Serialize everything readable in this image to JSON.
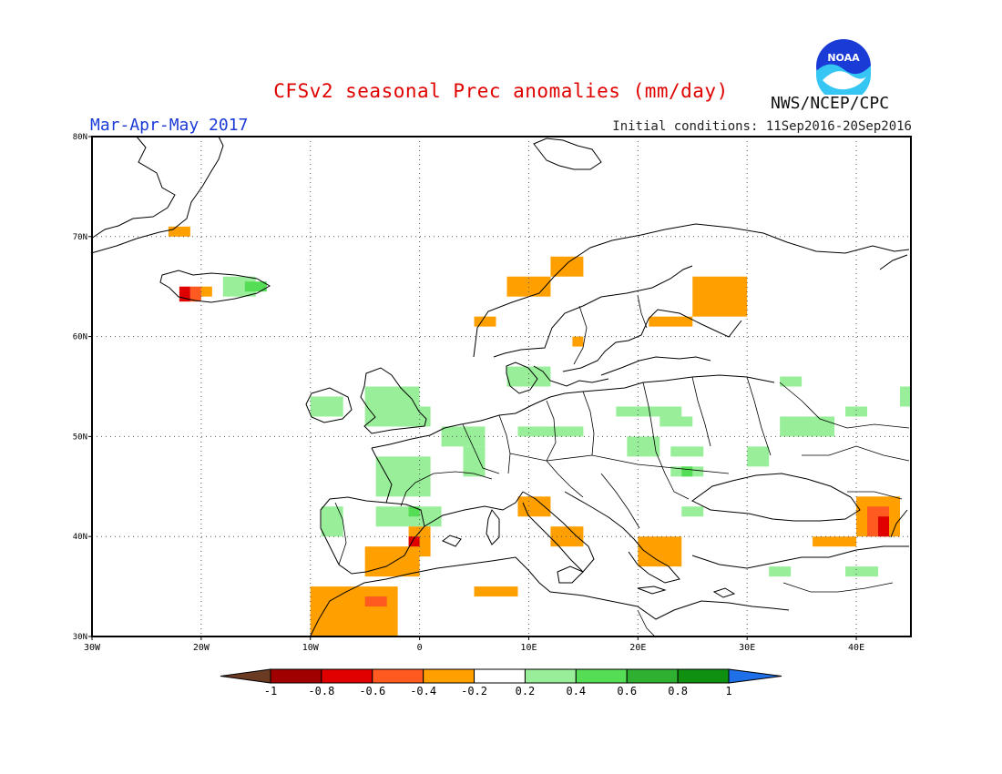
{
  "title": "CFSv2 seasonal Prec anomalies (mm/day)",
  "season": "Mar-Apr-May 2017",
  "initial_conditions": "Initial conditions: 11Sep2016-20Sep2016",
  "agency": "NWS/NCEP/CPC",
  "logo_text": "NOAA",
  "icons": {
    "logo": "noaa-logo"
  },
  "map": {
    "lon_range": [
      -30,
      45
    ],
    "lat_range": [
      30,
      80
    ],
    "lon_ticks": [
      {
        "value": -30,
        "label": "30W"
      },
      {
        "value": -20,
        "label": "20W"
      },
      {
        "value": -10,
        "label": "10W"
      },
      {
        "value": 0,
        "label": "0"
      },
      {
        "value": 10,
        "label": "10E"
      },
      {
        "value": 20,
        "label": "20E"
      },
      {
        "value": 30,
        "label": "30E"
      },
      {
        "value": 40,
        "label": "40E"
      }
    ],
    "lat_ticks": [
      {
        "value": 30,
        "label": "30N"
      },
      {
        "value": 40,
        "label": "40N"
      },
      {
        "value": 50,
        "label": "50N"
      },
      {
        "value": 60,
        "label": "60N"
      },
      {
        "value": 70,
        "label": "70N"
      },
      {
        "value": 80,
        "label": "80N"
      }
    ],
    "gridlines": "dotted"
  },
  "legend": {
    "ticks": [
      "-1",
      "-0.8",
      "-0.6",
      "-0.4",
      "-0.2",
      "0.2",
      "0.4",
      "0.6",
      "0.8",
      "1"
    ],
    "colors": [
      "#6b3a23",
      "#a00000",
      "#e00000",
      "#ff5a1f",
      "#ff9f00",
      "#ffffff",
      "#99ee99",
      "#55dd55",
      "#30b030",
      "#109010",
      "#1e6fe8"
    ]
  },
  "anomaly_colors": {
    "-0.2": "#ff9f00",
    "-0.4": "#ff5a1f",
    "-0.6": "#e00000",
    "0.2": "#99ee99",
    "0.4": "#55dd55"
  },
  "anomalies": [
    {
      "lon": [
        -23,
        -21
      ],
      "lat": [
        70,
        71
      ],
      "value": -0.2
    },
    {
      "lon": [
        -22,
        -21
      ],
      "lat": [
        63.5,
        65
      ],
      "value": -0.6
    },
    {
      "lon": [
        -21,
        -20
      ],
      "lat": [
        63.5,
        65
      ],
      "value": -0.4
    },
    {
      "lon": [
        -20,
        -19
      ],
      "lat": [
        64,
        65
      ],
      "value": -0.2
    },
    {
      "lon": [
        -18,
        -15
      ],
      "lat": [
        64,
        66
      ],
      "value": 0.2
    },
    {
      "lon": [
        -16,
        -14
      ],
      "lat": [
        64.5,
        65.5
      ],
      "value": 0.4
    },
    {
      "lon": [
        12,
        15
      ],
      "lat": [
        66,
        68
      ],
      "value": -0.2
    },
    {
      "lon": [
        8,
        12
      ],
      "lat": [
        64,
        66
      ],
      "value": -0.2
    },
    {
      "lon": [
        5,
        7
      ],
      "lat": [
        61,
        62
      ],
      "value": -0.2
    },
    {
      "lon": [
        25,
        30
      ],
      "lat": [
        62,
        66
      ],
      "value": -0.2
    },
    {
      "lon": [
        21,
        25
      ],
      "lat": [
        61,
        62
      ],
      "value": -0.2
    },
    {
      "lon": [
        14,
        15
      ],
      "lat": [
        59,
        60
      ],
      "value": -0.2
    },
    {
      "lon": [
        -10,
        -7
      ],
      "lat": [
        52,
        54
      ],
      "value": 0.2
    },
    {
      "lon": [
        -5,
        0
      ],
      "lat": [
        51,
        55
      ],
      "value": 0.2
    },
    {
      "lon": [
        -2,
        1
      ],
      "lat": [
        51,
        53
      ],
      "value": 0.2
    },
    {
      "lon": [
        8,
        12
      ],
      "lat": [
        55,
        57
      ],
      "value": 0.2
    },
    {
      "lon": [
        2,
        6
      ],
      "lat": [
        49,
        51
      ],
      "value": 0.2
    },
    {
      "lon": [
        9,
        15
      ],
      "lat": [
        50,
        51
      ],
      "value": 0.2
    },
    {
      "lon": [
        18,
        24
      ],
      "lat": [
        52,
        53
      ],
      "value": 0.2
    },
    {
      "lon": [
        22,
        25
      ],
      "lat": [
        51,
        52
      ],
      "value": 0.2
    },
    {
      "lon": [
        19,
        22
      ],
      "lat": [
        48,
        50
      ],
      "value": 0.2
    },
    {
      "lon": [
        23,
        26
      ],
      "lat": [
        48,
        49
      ],
      "value": 0.2
    },
    {
      "lon": [
        23,
        26
      ],
      "lat": [
        46,
        47
      ],
      "value": 0.2
    },
    {
      "lon": [
        24,
        25
      ],
      "lat": [
        46,
        47
      ],
      "value": 0.4
    },
    {
      "lon": [
        30,
        32
      ],
      "lat": [
        47,
        49
      ],
      "value": 0.2
    },
    {
      "lon": [
        33,
        38
      ],
      "lat": [
        50,
        52
      ],
      "value": 0.2
    },
    {
      "lon": [
        39,
        41
      ],
      "lat": [
        52,
        53
      ],
      "value": 0.2
    },
    {
      "lon": [
        33,
        35
      ],
      "lat": [
        55,
        56
      ],
      "value": 0.2
    },
    {
      "lon": [
        44,
        45
      ],
      "lat": [
        53,
        55
      ],
      "value": 0.2
    },
    {
      "lon": [
        -4,
        1
      ],
      "lat": [
        44,
        48
      ],
      "value": 0.2
    },
    {
      "lon": [
        4,
        6
      ],
      "lat": [
        46,
        49
      ],
      "value": 0.2
    },
    {
      "lon": [
        -9,
        -7
      ],
      "lat": [
        40,
        43
      ],
      "value": 0.2
    },
    {
      "lon": [
        -4,
        2
      ],
      "lat": [
        41,
        43
      ],
      "value": 0.2
    },
    {
      "lon": [
        -1,
        0
      ],
      "lat": [
        42,
        43
      ],
      "value": 0.4
    },
    {
      "lon": [
        24,
        26
      ],
      "lat": [
        42,
        43
      ],
      "value": 0.2
    },
    {
      "lon": [
        32,
        34
      ],
      "lat": [
        36,
        37
      ],
      "value": 0.2
    },
    {
      "lon": [
        39,
        42
      ],
      "lat": [
        36,
        37
      ],
      "value": 0.2
    },
    {
      "lon": [
        9,
        12
      ],
      "lat": [
        42,
        44
      ],
      "value": -0.2
    },
    {
      "lon": [
        12,
        15
      ],
      "lat": [
        39,
        41
      ],
      "value": -0.2
    },
    {
      "lon": [
        20,
        24
      ],
      "lat": [
        37,
        40
      ],
      "value": -0.2
    },
    {
      "lon": [
        -5,
        0
      ],
      "lat": [
        36,
        39
      ],
      "value": -0.2
    },
    {
      "lon": [
        -1,
        1
      ],
      "lat": [
        38,
        41
      ],
      "value": -0.2
    },
    {
      "lon": [
        -1,
        0
      ],
      "lat": [
        39,
        40
      ],
      "value": -0.6
    },
    {
      "lon": [
        5,
        9
      ],
      "lat": [
        34,
        35
      ],
      "value": -0.2
    },
    {
      "lon": [
        -10,
        -2
      ],
      "lat": [
        30,
        35
      ],
      "value": -0.2
    },
    {
      "lon": [
        -5,
        -3
      ],
      "lat": [
        33,
        34
      ],
      "value": -0.4
    },
    {
      "lon": [
        36,
        40
      ],
      "lat": [
        39,
        40
      ],
      "value": -0.2
    },
    {
      "lon": [
        40,
        44
      ],
      "lat": [
        40,
        44
      ],
      "value": -0.2
    },
    {
      "lon": [
        41,
        43
      ],
      "lat": [
        40,
        43
      ],
      "value": -0.4
    },
    {
      "lon": [
        42,
        43
      ],
      "lat": [
        40,
        42
      ],
      "value": -0.6
    }
  ]
}
